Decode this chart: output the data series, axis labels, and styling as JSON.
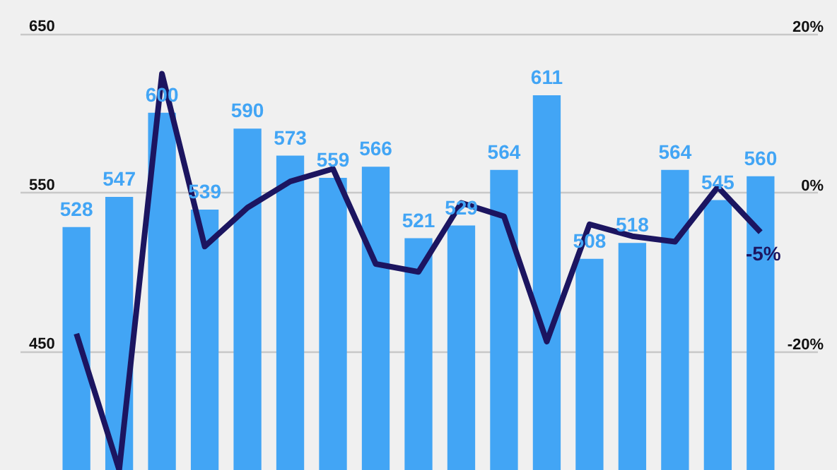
{
  "chart_data": {
    "type": "bar",
    "categories": [
      null,
      null,
      null,
      null,
      null,
      null,
      null,
      null,
      null,
      null,
      null,
      null,
      null,
      null,
      null,
      null,
      null
    ],
    "series": [
      {
        "color": "#42a5f5",
        "values": [
          528,
          547,
          600,
          539,
          590,
          573,
          559,
          566,
          521,
          529,
          564,
          611,
          508,
          518,
          564,
          545,
          560
        ]
      },
      {
        "type": "line",
        "axis": "y2",
        "color": "#1c1560",
        "values": [
          -17.8,
          -35,
          15,
          -6.8,
          -1.9,
          1.4,
          3,
          -9,
          -10,
          -1.3,
          -3,
          -18.8,
          -4,
          -5.5,
          -6.2,
          0.7,
          -5
        ],
        "value_labels": [
          null,
          null,
          null,
          null,
          null,
          null,
          null,
          null,
          null,
          null,
          null,
          null,
          null,
          null,
          null,
          null,
          "-5%"
        ]
      }
    ],
    "data_labels": true,
    "ylim": [
      375,
      671
    ],
    "yticks": [
      450,
      550,
      650
    ],
    "y2lim": [
      -35,
      24.3
    ],
    "y2ticks": [
      {
        "value": -20,
        "label": "-20%"
      },
      {
        "value": 0,
        "label": "0%"
      },
      {
        "value": 20,
        "label": "20%"
      }
    ],
    "grid": "y",
    "marker": "none",
    "line_style": "solid"
  }
}
